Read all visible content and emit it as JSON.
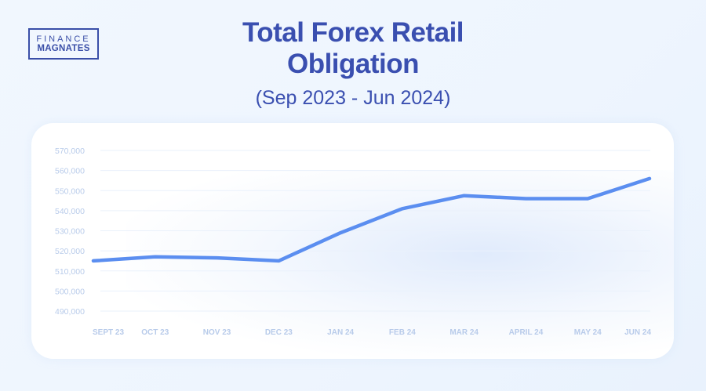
{
  "logo": {
    "line1": "FINANCE",
    "line2": "MAGNATES"
  },
  "header": {
    "title_line1": "Total Forex Retail",
    "title_line2": "Obligation",
    "subtitle": "(Sep 2023 - Jun 2024)"
  },
  "colors": {
    "title": "#3a4fb0",
    "line": "#5b8ef0",
    "axis_labels": "#b8cbea",
    "background": "#eef5fe"
  },
  "chart_data": {
    "type": "line",
    "title": "Total Forex Retail Obligation (Sep 2023 - Jun 2024)",
    "xlabel": "",
    "ylabel": "",
    "categories": [
      "SEPT 23",
      "OCT 23",
      "NOV 23",
      "DEC 23",
      "JAN 24",
      "FEB 24",
      "MAR 24",
      "APRIL 24",
      "MAY 24",
      "JUN 24"
    ],
    "series": [
      {
        "name": "Total Forex Retail Obligation",
        "values": [
          515000,
          517000,
          516500,
          515000,
          529000,
          541000,
          547500,
          546000,
          546000,
          556000
        ]
      }
    ],
    "yticks": [
      "570,000",
      "560,000",
      "550,000",
      "540,000",
      "530,000",
      "520,000",
      "510,000",
      "500,000",
      "490,000"
    ],
    "ylim": [
      490000,
      570000
    ],
    "grid": true,
    "legend": "none"
  }
}
